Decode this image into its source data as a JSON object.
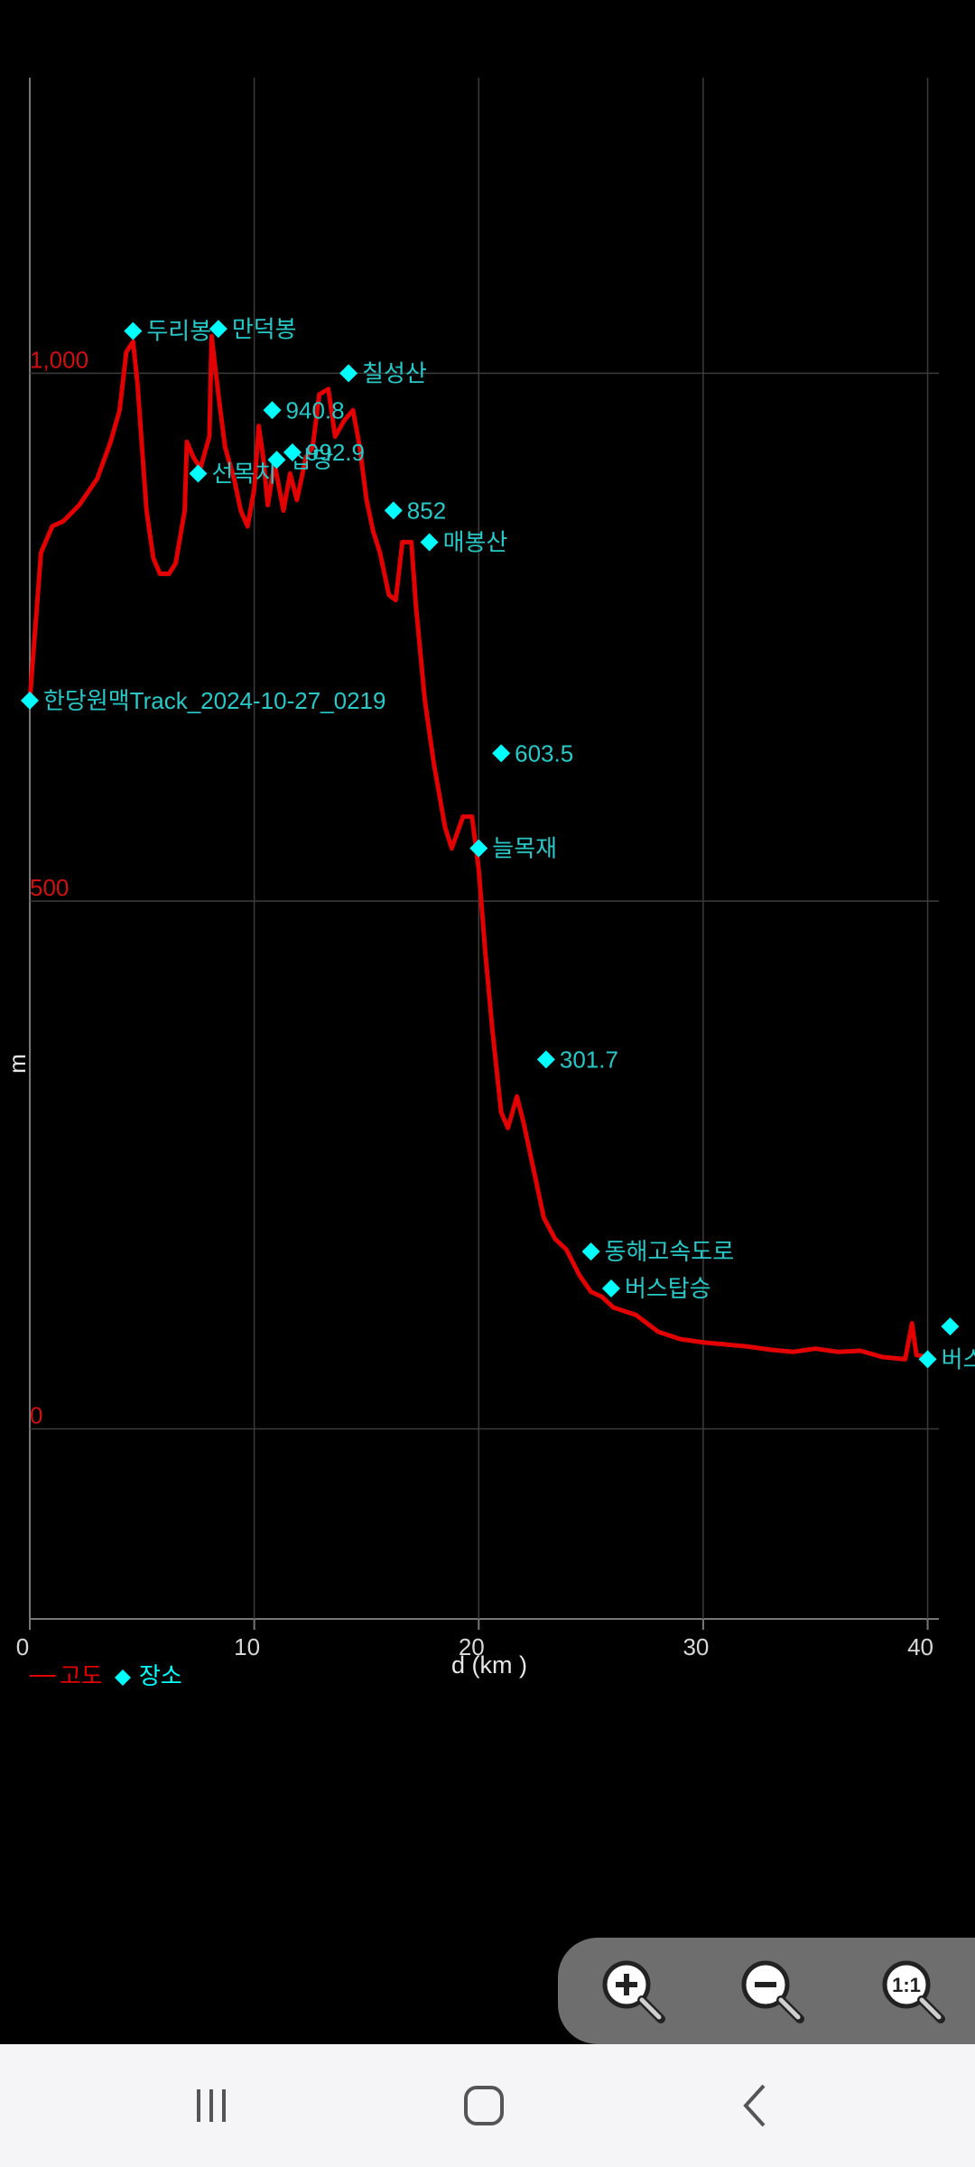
{
  "chart_data": {
    "type": "line",
    "x_label": "d (km )",
    "y_label": "m",
    "xlim": [
      0,
      40.5
    ],
    "ylim": [
      -180,
      1280
    ],
    "x_ticks": [
      "0",
      "10",
      "20",
      "30",
      "40"
    ],
    "y_ticks": [
      "0",
      "500",
      "1,000"
    ],
    "legend": [
      {
        "label": "고도",
        "color": "#e30000"
      },
      {
        "label": "장소",
        "color": "#00ffff"
      }
    ],
    "series": [
      {
        "name": "고도",
        "color": "#e30000",
        "points": [
          [
            0,
            690
          ],
          [
            0.5,
            830
          ],
          [
            1.0,
            855
          ],
          [
            1.5,
            860
          ],
          [
            2.2,
            875
          ],
          [
            3.0,
            900
          ],
          [
            3.6,
            935
          ],
          [
            4.0,
            965
          ],
          [
            4.3,
            1020
          ],
          [
            4.6,
            1030
          ],
          [
            4.8,
            990
          ],
          [
            5.2,
            870
          ],
          [
            5.5,
            825
          ],
          [
            5.8,
            810
          ],
          [
            6.2,
            810
          ],
          [
            6.5,
            820
          ],
          [
            6.9,
            870
          ],
          [
            7.0,
            935
          ],
          [
            7.3,
            920
          ],
          [
            7.6,
            910
          ],
          [
            8.0,
            940
          ],
          [
            8.1,
            1035
          ],
          [
            8.4,
            980
          ],
          [
            8.7,
            930
          ],
          [
            9.1,
            900
          ],
          [
            9.4,
            870
          ],
          [
            9.7,
            855
          ],
          [
            10.0,
            890
          ],
          [
            10.2,
            950
          ],
          [
            10.4,
            920
          ],
          [
            10.6,
            875
          ],
          [
            10.9,
            915
          ],
          [
            11.3,
            870
          ],
          [
            11.6,
            905
          ],
          [
            11.9,
            880
          ],
          [
            12.3,
            920
          ],
          [
            12.6,
            930
          ],
          [
            12.9,
            980
          ],
          [
            13.3,
            985
          ],
          [
            13.6,
            940
          ],
          [
            14.0,
            955
          ],
          [
            14.4,
            965
          ],
          [
            14.7,
            930
          ],
          [
            15.0,
            880
          ],
          [
            15.3,
            850
          ],
          [
            15.6,
            830
          ],
          [
            16.0,
            790
          ],
          [
            16.3,
            785
          ],
          [
            16.6,
            840
          ],
          [
            17.0,
            840
          ],
          [
            17.2,
            780
          ],
          [
            17.6,
            690
          ],
          [
            18.0,
            630
          ],
          [
            18.5,
            570
          ],
          [
            18.8,
            550
          ],
          [
            19.3,
            580
          ],
          [
            19.7,
            580
          ],
          [
            20.0,
            530
          ],
          [
            20.3,
            450
          ],
          [
            20.6,
            380
          ],
          [
            21.0,
            300
          ],
          [
            21.3,
            285
          ],
          [
            21.7,
            315
          ],
          [
            22.0,
            290
          ],
          [
            22.4,
            250
          ],
          [
            22.9,
            200
          ],
          [
            23.4,
            180
          ],
          [
            23.9,
            170
          ],
          [
            24.5,
            145
          ],
          [
            25.0,
            130
          ],
          [
            25.5,
            125
          ],
          [
            26.0,
            115
          ],
          [
            27.0,
            108
          ],
          [
            28.0,
            92
          ],
          [
            29.0,
            85
          ],
          [
            30.0,
            82
          ],
          [
            31.0,
            80
          ],
          [
            32.0,
            78
          ],
          [
            33.0,
            75
          ],
          [
            34.0,
            73
          ],
          [
            35.0,
            76
          ],
          [
            36.0,
            73
          ],
          [
            37.0,
            74
          ],
          [
            38.0,
            68
          ],
          [
            39.0,
            66
          ],
          [
            39.3,
            100
          ],
          [
            39.5,
            70
          ],
          [
            40.0,
            68
          ]
        ]
      }
    ],
    "waypoints": [
      {
        "name": "한당원",
        "label": "한당원맥Track_2024-10-27_0219",
        "x": 0,
        "y": 690
      },
      {
        "name": "두리봉",
        "label": "두리봉",
        "x": 4.6,
        "y": 1040
      },
      {
        "name": "만덕봉",
        "label": "만덕봉",
        "x": 8.4,
        "y": 1042
      },
      {
        "name": "선목치",
        "label": "선목치",
        "x": 7.5,
        "y": 905
      },
      {
        "name": "940.8",
        "label": "940.8",
        "x": 10.8,
        "y": 965
      },
      {
        "name": "삽당",
        "label": "삽당",
        "x": 11.0,
        "y": 918
      },
      {
        "name": "992.9",
        "label": "992.9",
        "x": 11.7,
        "y": 925
      },
      {
        "name": "칠성산",
        "label": "칠성산",
        "x": 14.2,
        "y": 1000
      },
      {
        "name": "852",
        "label": "852",
        "x": 16.2,
        "y": 870
      },
      {
        "name": "매봉산",
        "label": "매봉산",
        "x": 17.8,
        "y": 840
      },
      {
        "name": "603.5",
        "label": "603.5",
        "x": 21.0,
        "y": 640
      },
      {
        "name": "늘목재",
        "label": "늘목재",
        "x": 20.0,
        "y": 550
      },
      {
        "name": "301.7",
        "label": "301.7",
        "x": 23.0,
        "y": 350
      },
      {
        "name": "동해고속도로",
        "label": "동해고속도로",
        "x": 25.0,
        "y": 168
      },
      {
        "name": "버스탑승",
        "label": "버스탑승",
        "x": 25.9,
        "y": 133
      },
      {
        "name": "버스",
        "label": "버스",
        "x": 40.0,
        "y": 66
      },
      {
        "name": "end",
        "label": "",
        "x": 41.0,
        "y": 97
      }
    ]
  },
  "zoom_controls": [
    {
      "name": "zoom-in",
      "icon": "zoom-in-icon"
    },
    {
      "name": "zoom-out",
      "icon": "zoom-out-icon"
    },
    {
      "name": "zoom-reset",
      "icon": "zoom-1to1-icon"
    }
  ],
  "nav_buttons": [
    "recent-apps-icon",
    "home-icon",
    "back-icon"
  ]
}
